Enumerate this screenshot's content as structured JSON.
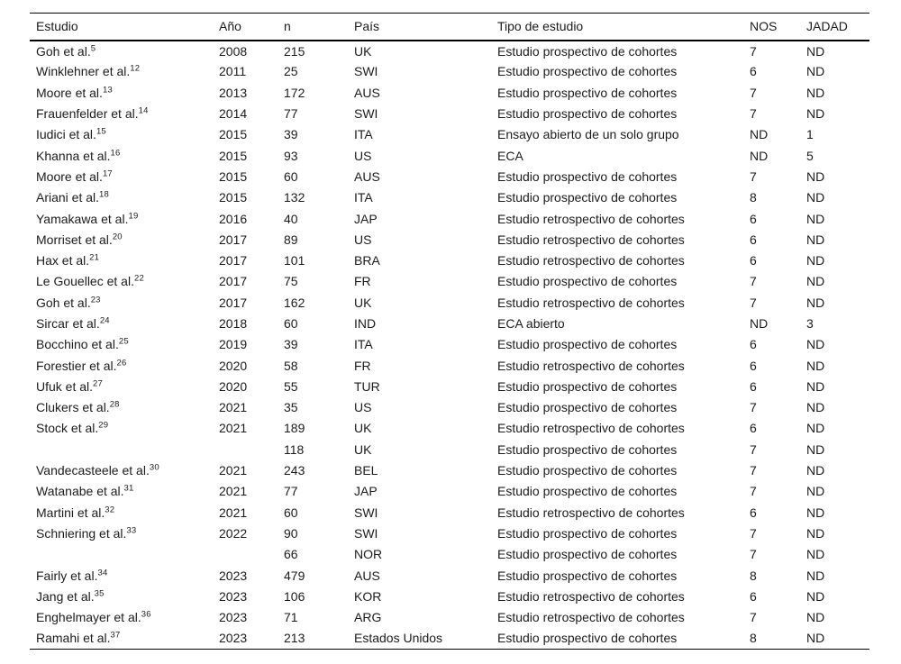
{
  "colors": {
    "background": "#ffffff",
    "text": "#1c1c1c",
    "rule": "#000000"
  },
  "table": {
    "columns": [
      "Estudio",
      "Año",
      "n",
      "País",
      "Tipo de estudio",
      "NOS",
      "JADAD"
    ],
    "rows": [
      {
        "estudio": "Goh et al.",
        "ref": "5",
        "ano": "2008",
        "n": "215",
        "pais": "UK",
        "tipo": "Estudio prospectivo de cohortes",
        "nos": "7",
        "jadad": "ND"
      },
      {
        "estudio": "Winklehner et al.",
        "ref": "12",
        "ano": "2011",
        "n": "25",
        "pais": "SWI",
        "tipo": "Estudio prospectivo de cohortes",
        "nos": "6",
        "jadad": "ND"
      },
      {
        "estudio": "Moore et al.",
        "ref": "13",
        "ano": "2013",
        "n": "172",
        "pais": "AUS",
        "tipo": "Estudio prospectivo de cohortes",
        "nos": "7",
        "jadad": "ND"
      },
      {
        "estudio": "Frauenfelder et al.",
        "ref": "14",
        "ano": "2014",
        "n": "77",
        "pais": "SWI",
        "tipo": "Estudio prospectivo de cohortes",
        "nos": "7",
        "jadad": "ND"
      },
      {
        "estudio": "Iudici et al.",
        "ref": "15",
        "ano": "2015",
        "n": "39",
        "pais": "ITA",
        "tipo": "Ensayo abierto de un solo grupo",
        "nos": "ND",
        "jadad": "1"
      },
      {
        "estudio": "Khanna et al.",
        "ref": "16",
        "ano": "2015",
        "n": "93",
        "pais": "US",
        "tipo": "ECA",
        "nos": "ND",
        "jadad": "5"
      },
      {
        "estudio": "Moore et al.",
        "ref": "17",
        "ano": "2015",
        "n": "60",
        "pais": "AUS",
        "tipo": "Estudio prospectivo de cohortes",
        "nos": "7",
        "jadad": "ND"
      },
      {
        "estudio": "Ariani et al.",
        "ref": "18",
        "ano": "2015",
        "n": "132",
        "pais": "ITA",
        "tipo": "Estudio prospectivo de cohortes",
        "nos": "8",
        "jadad": "ND"
      },
      {
        "estudio": "Yamakawa et al.",
        "ref": "19",
        "ano": "2016",
        "n": "40",
        "pais": "JAP",
        "tipo": "Estudio retrospectivo de cohortes",
        "nos": "6",
        "jadad": "ND"
      },
      {
        "estudio": "Morriset et al.",
        "ref": "20",
        "ano": "2017",
        "n": "89",
        "pais": "US",
        "tipo": "Estudio retrospectivo de cohortes",
        "nos": "6",
        "jadad": "ND"
      },
      {
        "estudio": "Hax et al.",
        "ref": "21",
        "ano": "2017",
        "n": "101",
        "pais": "BRA",
        "tipo": "Estudio retrospectivo de cohortes",
        "nos": "6",
        "jadad": "ND"
      },
      {
        "estudio": "Le Gouellec et al.",
        "ref": "22",
        "ano": "2017",
        "n": "75",
        "pais": "FR",
        "tipo": "Estudio prospectivo de cohortes",
        "nos": "7",
        "jadad": "ND"
      },
      {
        "estudio": "Goh et al.",
        "ref": "23",
        "ano": "2017",
        "n": "162",
        "pais": "UK",
        "tipo": "Estudio retrospectivo de cohortes",
        "nos": "7",
        "jadad": "ND"
      },
      {
        "estudio": "Sircar et al.",
        "ref": "24",
        "ano": "2018",
        "n": "60",
        "pais": "IND",
        "tipo": "ECA abierto",
        "nos": "ND",
        "jadad": "3"
      },
      {
        "estudio": "Bocchino et al.",
        "ref": "25",
        "ano": "2019",
        "n": "39",
        "pais": "ITA",
        "tipo": "Estudio prospectivo de cohortes",
        "nos": "6",
        "jadad": "ND"
      },
      {
        "estudio": "Forestier et al.",
        "ref": "26",
        "ano": "2020",
        "n": "58",
        "pais": "FR",
        "tipo": "Estudio retrospectivo de cohortes",
        "nos": "6",
        "jadad": "ND"
      },
      {
        "estudio": "Ufuk et al.",
        "ref": "27",
        "ano": "2020",
        "n": "55",
        "pais": "TUR",
        "tipo": "Estudio prospectivo de cohortes",
        "nos": "6",
        "jadad": "ND"
      },
      {
        "estudio": "Clukers et al.",
        "ref": "28",
        "ano": "2021",
        "n": "35",
        "pais": "US",
        "tipo": "Estudio prospectivo de cohortes",
        "nos": "7",
        "jadad": "ND"
      },
      {
        "estudio": "Stock et al.",
        "ref": "29",
        "ano": "2021",
        "n": "189",
        "pais": "UK",
        "tipo": "Estudio retrospectivo de cohortes",
        "nos": "6",
        "jadad": "ND"
      },
      {
        "estudio": "",
        "ref": "",
        "ano": "",
        "n": "118",
        "pais": "UK",
        "tipo": "Estudio prospectivo de cohortes",
        "nos": "7",
        "jadad": "ND"
      },
      {
        "estudio": "Vandecasteele et al.",
        "ref": "30",
        "ano": "2021",
        "n": "243",
        "pais": "BEL",
        "tipo": "Estudio prospectivo de cohortes",
        "nos": "7",
        "jadad": "ND"
      },
      {
        "estudio": "Watanabe et al.",
        "ref": "31",
        "ano": "2021",
        "n": "77",
        "pais": "JAP",
        "tipo": "Estudio prospectivo de cohortes",
        "nos": "7",
        "jadad": "ND"
      },
      {
        "estudio": "Martini et al.",
        "ref": "32",
        "ano": "2021",
        "n": "60",
        "pais": "SWI",
        "tipo": "Estudio retrospectivo de cohortes",
        "nos": "6",
        "jadad": "ND"
      },
      {
        "estudio": "Schniering et al.",
        "ref": "33",
        "ano": "2022",
        "n": "90",
        "pais": "SWI",
        "tipo": "Estudio prospectivo de cohortes",
        "nos": "7",
        "jadad": "ND"
      },
      {
        "estudio": "",
        "ref": "",
        "ano": "",
        "n": "66",
        "pais": "NOR",
        "tipo": "Estudio prospectivo de cohortes",
        "nos": "7",
        "jadad": "ND"
      },
      {
        "estudio": "Fairly et al.",
        "ref": "34",
        "ano": "2023",
        "n": "479",
        "pais": "AUS",
        "tipo": "Estudio prospectivo de cohortes",
        "nos": "8",
        "jadad": "ND"
      },
      {
        "estudio": "Jang et al.",
        "ref": "35",
        "ano": "2023",
        "n": "106",
        "pais": "KOR",
        "tipo": "Estudio retrospectivo de cohortes",
        "nos": "6",
        "jadad": "ND"
      },
      {
        "estudio": "Enghelmayer et al.",
        "ref": "36",
        "ano": "2023",
        "n": "71",
        "pais": "ARG",
        "tipo": "Estudio retrospectivo de cohortes",
        "nos": "7",
        "jadad": "ND"
      },
      {
        "estudio": "Ramahi et al.",
        "ref": "37",
        "ano": "2023",
        "n": "213",
        "pais": "Estados Unidos",
        "tipo": "Estudio prospectivo de cohortes",
        "nos": "8",
        "jadad": "ND"
      }
    ]
  }
}
